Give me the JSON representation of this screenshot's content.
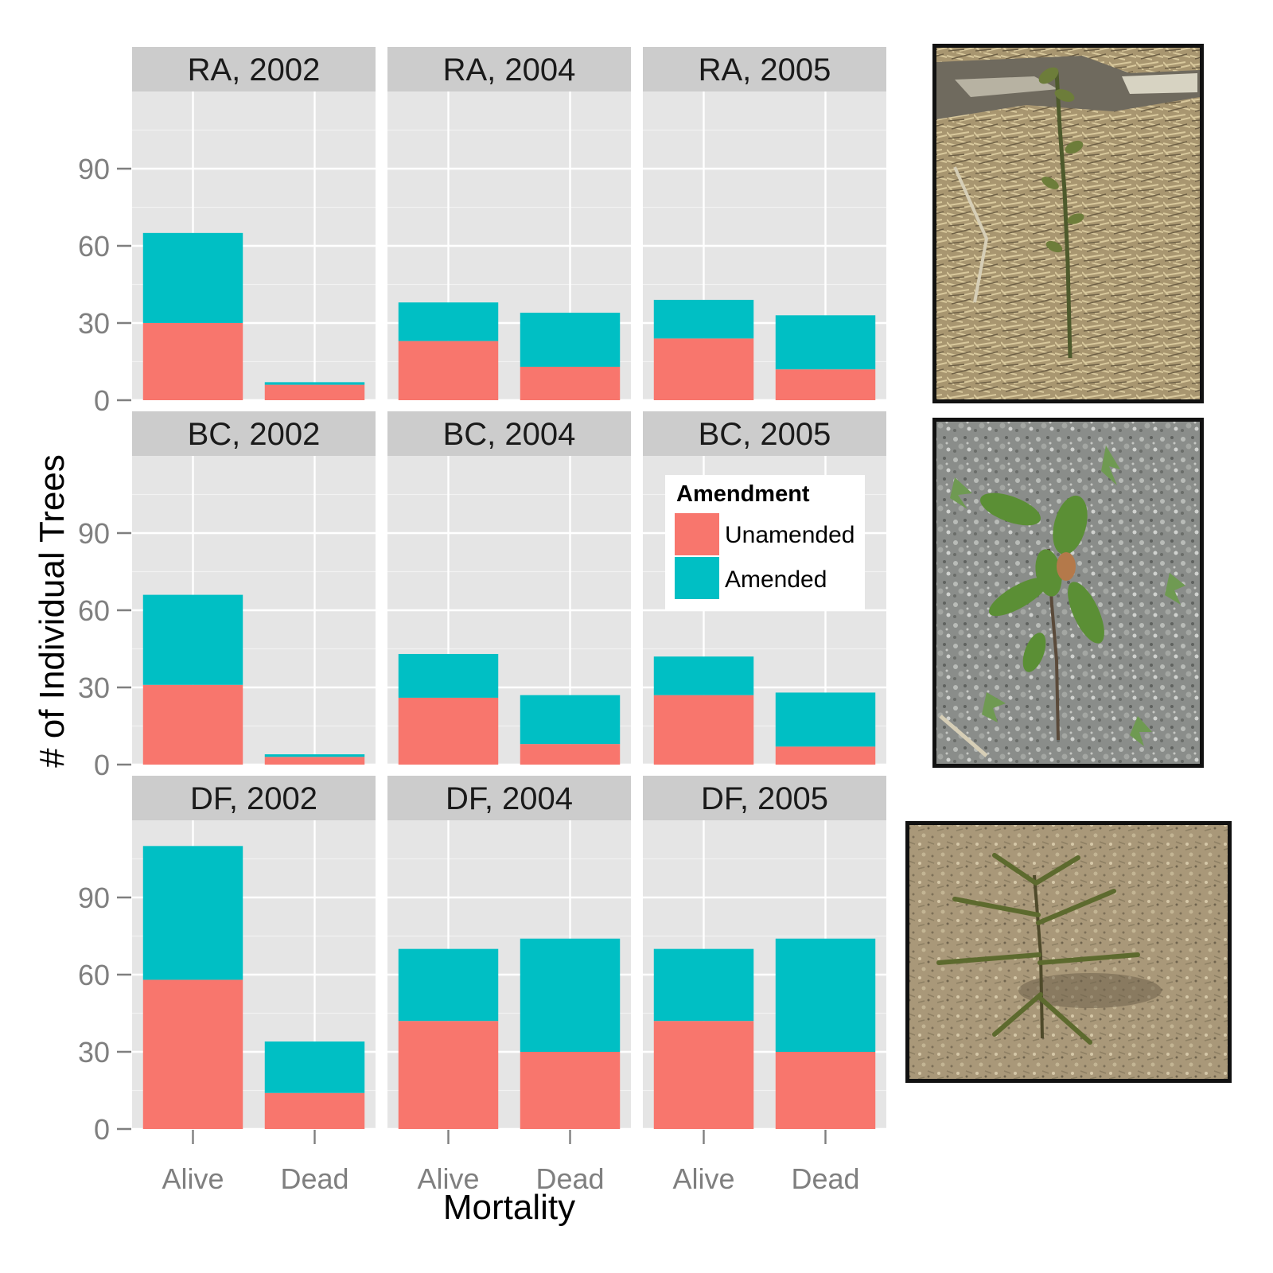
{
  "chart_data": {
    "type": "bar",
    "stacked": true,
    "facet_layout": "3 rows x 3 columns",
    "xlabel": "Mortality",
    "ylabel": "# of Individual Trees",
    "categories": [
      "Alive",
      "Dead"
    ],
    "ylim": [
      0,
      120
    ],
    "yticks": [
      0,
      30,
      60,
      90
    ],
    "grid": true,
    "colors": {
      "Unamended": "#F8766D",
      "Amended": "#00BFC4",
      "panel_background": "#E5E5E5",
      "strip_background": "#CCCCCC"
    },
    "legend": {
      "title": "Amendment",
      "placement": "inside BC, 2005 panel (top-right)",
      "entries": [
        "Unamended",
        "Amended"
      ]
    },
    "panels": [
      {
        "title": "RA, 2002",
        "series": [
          {
            "name": "Unamended",
            "values": [
              30,
              6
            ]
          },
          {
            "name": "Amended",
            "values": [
              35,
              1
            ]
          }
        ]
      },
      {
        "title": "RA, 2004",
        "series": [
          {
            "name": "Unamended",
            "values": [
              23,
              13
            ]
          },
          {
            "name": "Amended",
            "values": [
              15,
              21
            ]
          }
        ]
      },
      {
        "title": "RA, 2005",
        "series": [
          {
            "name": "Unamended",
            "values": [
              24,
              12
            ]
          },
          {
            "name": "Amended",
            "values": [
              15,
              21
            ]
          }
        ]
      },
      {
        "title": "BC, 2002",
        "series": [
          {
            "name": "Unamended",
            "values": [
              31,
              3
            ]
          },
          {
            "name": "Amended",
            "values": [
              35,
              1
            ]
          }
        ]
      },
      {
        "title": "BC, 2004",
        "series": [
          {
            "name": "Unamended",
            "values": [
              26,
              8
            ]
          },
          {
            "name": "Amended",
            "values": [
              17,
              19
            ]
          }
        ]
      },
      {
        "title": "BC, 2005",
        "series": [
          {
            "name": "Unamended",
            "values": [
              27,
              7
            ]
          },
          {
            "name": "Amended",
            "values": [
              15,
              21
            ]
          }
        ]
      },
      {
        "title": "DF, 2002",
        "series": [
          {
            "name": "Unamended",
            "values": [
              58,
              14
            ]
          },
          {
            "name": "Amended",
            "values": [
              52,
              20
            ]
          }
        ]
      },
      {
        "title": "DF, 2004",
        "series": [
          {
            "name": "Unamended",
            "values": [
              42,
              30
            ]
          },
          {
            "name": "Amended",
            "values": [
              28,
              44
            ]
          }
        ]
      },
      {
        "title": "DF, 2005",
        "series": [
          {
            "name": "Unamended",
            "values": [
              42,
              30
            ]
          },
          {
            "name": "Amended",
            "values": [
              28,
              44
            ]
          }
        ]
      }
    ],
    "photos": [
      {
        "row": "RA",
        "subject": "red alder seedling on straw mulch"
      },
      {
        "row": "BC",
        "subject": "broadleaf seedling on gravel"
      },
      {
        "row": "DF",
        "subject": "Douglas-fir seedling on bare soil"
      }
    ]
  }
}
